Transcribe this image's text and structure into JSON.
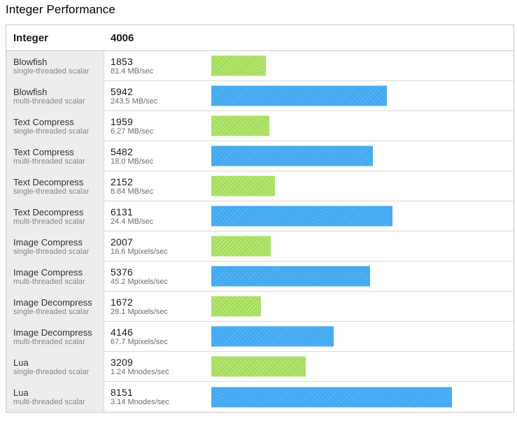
{
  "page": {
    "title": "Integer Performance"
  },
  "table": {
    "header": {
      "name": "Integer",
      "score": "4006"
    },
    "rows": [
      {
        "test": "Blowfish",
        "variant": "single-threaded scalar",
        "score": 1853,
        "rate": "81.4 MB/sec",
        "type": "single"
      },
      {
        "test": "Blowfish",
        "variant": "multi-threaded scalar",
        "score": 5942,
        "rate": "243.5 MB/sec",
        "type": "multi"
      },
      {
        "test": "Text Compress",
        "variant": "single-threaded scalar",
        "score": 1959,
        "rate": "6.27 MB/sec",
        "type": "single"
      },
      {
        "test": "Text Compress",
        "variant": "multi-threaded scalar",
        "score": 5482,
        "rate": "18.0 MB/sec",
        "type": "multi"
      },
      {
        "test": "Text Decompress",
        "variant": "single-threaded scalar",
        "score": 2152,
        "rate": "8.84 MB/sec",
        "type": "single"
      },
      {
        "test": "Text Decompress",
        "variant": "multi-threaded scalar",
        "score": 6131,
        "rate": "24.4 MB/sec",
        "type": "multi"
      },
      {
        "test": "Image Compress",
        "variant": "single-threaded scalar",
        "score": 2007,
        "rate": "16.6 Mpixels/sec",
        "type": "single"
      },
      {
        "test": "Image Compress",
        "variant": "multi-threaded scalar",
        "score": 5376,
        "rate": "45.2 Mpixels/sec",
        "type": "multi"
      },
      {
        "test": "Image Decompress",
        "variant": "single-threaded scalar",
        "score": 1672,
        "rate": "28.1 Mpixels/sec",
        "type": "single"
      },
      {
        "test": "Image Decompress",
        "variant": "multi-threaded scalar",
        "score": 4146,
        "rate": "67.7 Mpixels/sec",
        "type": "multi"
      },
      {
        "test": "Lua",
        "variant": "single-threaded scalar",
        "score": 3209,
        "rate": "1.24 Mnodes/sec",
        "type": "single"
      },
      {
        "test": "Lua",
        "variant": "multi-threaded scalar",
        "score": 8151,
        "rate": "3.14 Mnodes/sec",
        "type": "multi"
      }
    ]
  },
  "colors": {
    "single_bar_base": "#a4da55",
    "single_bar_stripe": "#b6e679",
    "multi_bar_base": "#3ea6f0",
    "multi_bar_stripe": "#54b2f4",
    "label_column_bg": "#ededed",
    "table_border": "#c9c9c9",
    "row_divider": "#dcdcdc"
  },
  "chart_data": {
    "type": "bar",
    "orientation": "horizontal",
    "title": "Integer Performance",
    "group": {
      "label": "Integer",
      "overall_score": 4006
    },
    "categories": [
      "Blowfish (single-threaded scalar)",
      "Blowfish (multi-threaded scalar)",
      "Text Compress (single-threaded scalar)",
      "Text Compress (multi-threaded scalar)",
      "Text Decompress (single-threaded scalar)",
      "Text Decompress (multi-threaded scalar)",
      "Image Compress (single-threaded scalar)",
      "Image Compress (multi-threaded scalar)",
      "Image Decompress (single-threaded scalar)",
      "Image Decompress (multi-threaded scalar)",
      "Lua (single-threaded scalar)",
      "Lua (multi-threaded scalar)"
    ],
    "values": [
      1853,
      5942,
      1959,
      5482,
      2152,
      6131,
      2007,
      5376,
      1672,
      4146,
      3209,
      8151
    ],
    "value_annotations": [
      "81.4 MB/sec",
      "243.5 MB/sec",
      "6.27 MB/sec",
      "18.0 MB/sec",
      "8.84 MB/sec",
      "24.4 MB/sec",
      "16.6 Mpixels/sec",
      "45.2 Mpixels/sec",
      "28.1 Mpixels/sec",
      "67.7 Mpixels/sec",
      "1.24 Mnodes/sec",
      "3.14 Mnodes/sec"
    ],
    "series_colors": {
      "single-threaded": "#a4da55",
      "multi-threaded": "#3ea6f0"
    },
    "xlim": [
      0,
      10190
    ],
    "grid": false,
    "legend": false,
    "value_labels": true
  }
}
